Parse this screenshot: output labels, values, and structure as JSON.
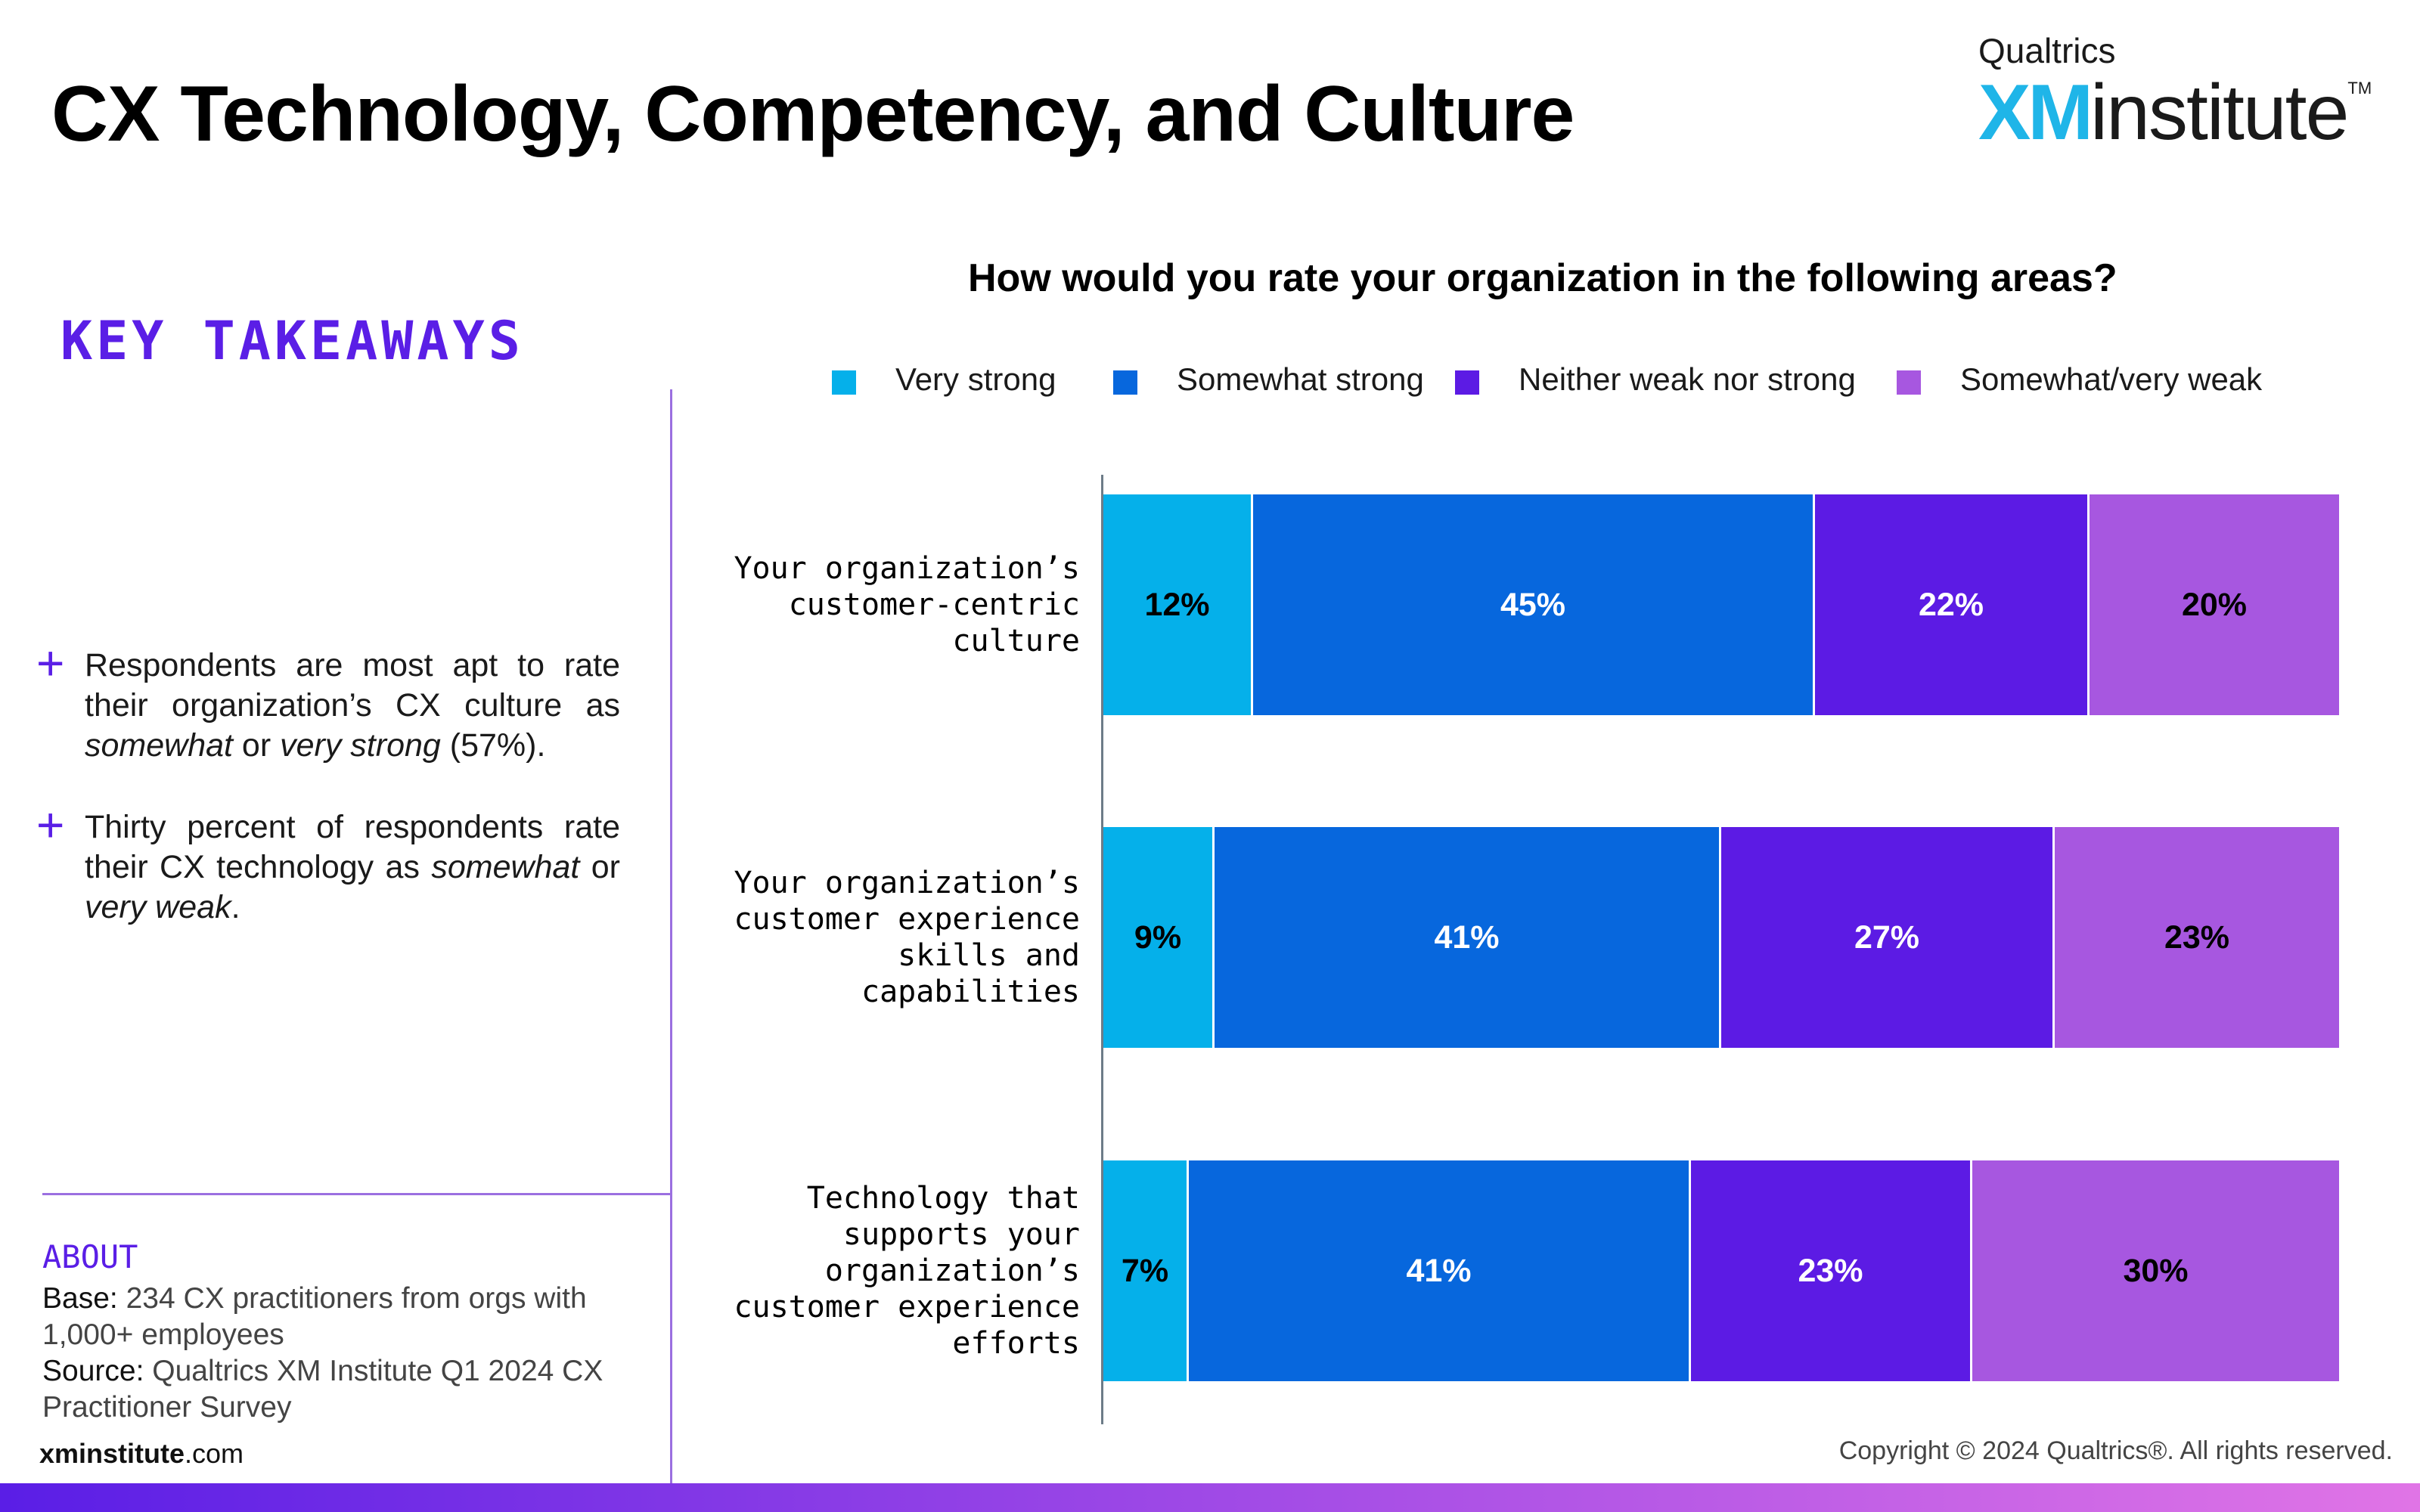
{
  "page": {
    "title": "CX Technology, Competency, and Culture",
    "logo": {
      "top": "Qualtrics",
      "xm": "XM",
      "word": "institute",
      "tm": "TM"
    },
    "key_takeaways_heading": "KEY TAKEAWAYS",
    "bullets": [
      {
        "html": "Respondents are most apt to rate their organization’s CX culture as <i>somewhat</i> or <i>very strong</i> (57%)."
      },
      {
        "html": "Thirty percent of respondents rate their CX technology as <i>somewhat</i> or <i>very weak</i>."
      }
    ],
    "bullet_symbol": "+",
    "about": {
      "label": "ABOUT",
      "base_label": "Base:",
      "base_text": "234 CX practitioners from orgs with 1,000+ employees",
      "source_label": "Source:",
      "source_text": "Qualtrics XM Institute Q1 2024 CX Practitioner Survey"
    },
    "site": {
      "bold": "xminstitute",
      "rest": ".com"
    },
    "copyright": "Copyright © 2024 Qualtrics®. All rights reserved."
  },
  "chart_data": {
    "type": "bar",
    "orientation": "horizontal",
    "stacked": true,
    "title": "How would you rate your organization in the following areas?",
    "legend_position": "top",
    "categories": [
      "Your organization’s\ncustomer-centric\nculture",
      "Your organization’s\ncustomer experience\nskills and\ncapabilities",
      "Technology that\nsupports your\norganization’s\ncustomer experience\nefforts"
    ],
    "series": [
      {
        "name": "Very strong",
        "color": "#05b0ea",
        "label_color": "#000000",
        "values": [
          12,
          9,
          7
        ]
      },
      {
        "name": "Somewhat strong",
        "color": "#0767dd",
        "label_color": "#ffffff",
        "values": [
          45,
          41,
          41
        ]
      },
      {
        "name": "Neither weak nor strong",
        "color": "#5c1be4",
        "label_color": "#ffffff",
        "values": [
          22,
          27,
          23
        ]
      },
      {
        "name": "Somewhat/very weak",
        "color": "#a757e0",
        "label_color": "#000000",
        "values": [
          20,
          23,
          30
        ]
      }
    ],
    "value_suffix": "%"
  }
}
